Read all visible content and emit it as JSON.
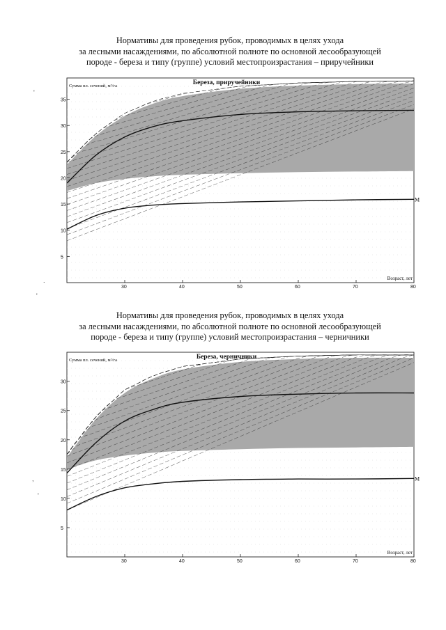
{
  "headings": [
    {
      "lines": [
        "Нормативы для проведения рубок, проводимых в целях ухода",
        "за лесными насаждениями, по абсолютной полноте по основной лесообразующей",
        "породе - береза и типу (группе) условий местопроизрастания – приручейники"
      ]
    },
    {
      "lines": [
        "Нормативы для проведения рубок, проводимых в целях ухода",
        "за лесными насаждениями, по абсолютной полноте по основной лесообразующей",
        "породе - береза и типу (группе) условий местопроизрастания – черничники"
      ]
    }
  ],
  "chart_data": [
    {
      "type": "line",
      "title": "Береза, приручейники",
      "ylabel": "Сумма пл. сечений, м²/га",
      "xlabel": "Возраст, лет",
      "xlim": [
        20,
        80
      ],
      "ylim": [
        0,
        38
      ],
      "xticks": [
        30,
        40,
        50,
        60,
        70,
        80
      ],
      "yticks": [
        5,
        10,
        15,
        20,
        25,
        30,
        35
      ],
      "band_color": "#a9a9a9",
      "line_color": "#111111",
      "grid": false,
      "series": [
        {
          "name": "",
          "role": "upper",
          "x": [
            20,
            25,
            30,
            35,
            40,
            50,
            60,
            70,
            80
          ],
          "y": [
            22.5,
            28.0,
            31.8,
            34.2,
            35.6,
            37.0,
            37.6,
            37.9,
            38.0
          ]
        },
        {
          "name": "",
          "role": "optimal",
          "x": [
            20,
            25,
            30,
            35,
            40,
            50,
            60,
            70,
            80
          ],
          "y": [
            19.0,
            24.3,
            27.8,
            29.8,
            30.9,
            32.1,
            32.6,
            32.8,
            32.9
          ]
        },
        {
          "name": "",
          "role": "lower",
          "x": [
            20,
            25,
            30,
            35,
            40,
            50,
            60,
            70,
            80
          ],
          "y": [
            17.5,
            19.0,
            19.8,
            20.3,
            20.6,
            20.9,
            21.1,
            21.2,
            21.3
          ]
        },
        {
          "name": "М",
          "role": "minimum",
          "x": [
            20,
            25,
            30,
            35,
            40,
            50,
            60,
            70,
            80
          ],
          "y": [
            10.2,
            12.8,
            14.2,
            14.8,
            15.1,
            15.4,
            15.6,
            15.8,
            15.9
          ]
        }
      ]
    },
    {
      "type": "line",
      "title": "Береза, черничники",
      "ylabel": "Сумма пл. сечений, м²/га",
      "xlabel": "Возраст, лет",
      "xlim": [
        20,
        80
      ],
      "ylim": [
        0,
        34
      ],
      "xticks": [
        30,
        40,
        50,
        60,
        70,
        80
      ],
      "yticks": [
        5,
        10,
        15,
        20,
        25,
        30
      ],
      "band_color": "#a9a9a9",
      "line_color": "#111111",
      "grid": false,
      "series": [
        {
          "name": "",
          "role": "upper",
          "x": [
            20,
            25,
            30,
            35,
            40,
            50,
            60,
            70,
            80
          ],
          "y": [
            17.0,
            23.5,
            28.0,
            30.5,
            32.0,
            33.3,
            33.8,
            34.0,
            34.0
          ]
        },
        {
          "name": "",
          "role": "optimal",
          "x": [
            20,
            25,
            30,
            35,
            40,
            50,
            60,
            70,
            80
          ],
          "y": [
            14.3,
            19.5,
            23.2,
            25.2,
            26.4,
            27.4,
            27.8,
            28.0,
            28.0
          ]
        },
        {
          "name": "",
          "role": "lower",
          "x": [
            20,
            25,
            30,
            35,
            40,
            50,
            60,
            70,
            80
          ],
          "y": [
            15.0,
            16.5,
            17.3,
            17.8,
            18.1,
            18.4,
            18.6,
            18.7,
            18.8
          ]
        },
        {
          "name": "М",
          "role": "minimum",
          "x": [
            20,
            25,
            30,
            35,
            40,
            50,
            60,
            70,
            80
          ],
          "y": [
            8.0,
            10.3,
            11.8,
            12.5,
            12.9,
            13.2,
            13.3,
            13.3,
            13.4
          ]
        }
      ]
    }
  ],
  "margin_marks": [
    "'",
    ".",
    "'",
    ",",
    "'"
  ]
}
